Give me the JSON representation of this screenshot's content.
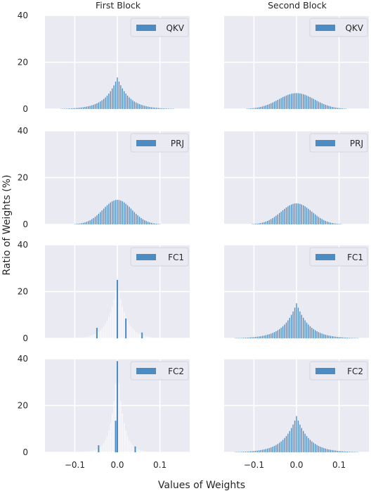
{
  "chart_data": {
    "type": "bar",
    "layout": "4x2 grid of histograms",
    "column_titles": [
      "First Block",
      "Second Block"
    ],
    "xlabel": "Values of Weights",
    "ylabel": "Ratio of Weights (%)",
    "xlim": [
      -0.17,
      0.17
    ],
    "ylim": [
      0,
      40
    ],
    "xticks": [
      -0.1,
      0.0,
      0.1
    ],
    "xtick_labels": [
      "−0.1",
      "0.0",
      "0.1"
    ],
    "yticks": [
      0,
      20,
      40
    ],
    "ytick_labels": [
      "0",
      "20",
      "40"
    ],
    "grid": true,
    "legend_position": "top-right",
    "bar_color": "#4c8cc2",
    "background_color": "#eaeaf2",
    "panels": [
      {
        "row": 0,
        "col": 0,
        "legend": "QKV",
        "kind": "laplace",
        "peak": 13.5,
        "width": 0.028
      },
      {
        "row": 0,
        "col": 1,
        "legend": "QKV",
        "kind": "gauss",
        "peak": 6.8,
        "width": 0.042
      },
      {
        "row": 1,
        "col": 0,
        "legend": "PRJ",
        "kind": "gauss",
        "peak": 10.5,
        "width": 0.034
      },
      {
        "row": 1,
        "col": 1,
        "legend": "PRJ",
        "kind": "gauss",
        "peak": 9.0,
        "width": 0.036
      },
      {
        "row": 2,
        "col": 0,
        "legend": "FC1",
        "kind": "sparse",
        "peak": 25.0,
        "width": 0.02,
        "spikes": [
          [
            0.02,
            8.5
          ],
          [
            -0.048,
            4.5
          ],
          [
            0.058,
            2.5
          ]
        ]
      },
      {
        "row": 2,
        "col": 1,
        "legend": "FC1",
        "kind": "laplace",
        "peak": 15.0,
        "width": 0.03
      },
      {
        "row": 3,
        "col": 0,
        "legend": "FC2",
        "kind": "sparse",
        "peak": 39.0,
        "width": 0.014,
        "spikes": [
          [
            -0.004,
            13.5
          ],
          [
            -0.044,
            3.0
          ],
          [
            0.042,
            2.5
          ]
        ]
      },
      {
        "row": 3,
        "col": 1,
        "legend": "FC2",
        "kind": "laplace",
        "peak": 15.5,
        "width": 0.03
      }
    ]
  }
}
